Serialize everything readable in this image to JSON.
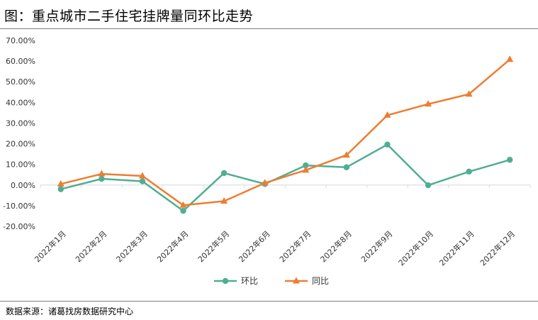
{
  "title": "图：重点城市二手住宅挂牌量同环比走势",
  "source": "数据来源：诸葛找房数据研究中心",
  "chart_data": {
    "type": "line",
    "categories": [
      "2022年1月",
      "2022年2月",
      "2022年3月",
      "2022年4月",
      "2022年5月",
      "2022年6月",
      "2022年7月",
      "2022年8月",
      "2022年9月",
      "2022年10月",
      "2022年11月",
      "2022年12月"
    ],
    "series": [
      {
        "name": "环比",
        "color": "#4fae93",
        "marker": "circle",
        "values": [
          -2.0,
          3.0,
          1.8,
          -12.5,
          5.8,
          0.5,
          9.5,
          8.6,
          19.6,
          -0.1,
          6.5,
          12.2
        ]
      },
      {
        "name": "同比",
        "color": "#ed7d31",
        "marker": "triangle",
        "values": [
          0.5,
          5.4,
          4.4,
          -9.8,
          -7.8,
          1.0,
          7.2,
          14.5,
          33.8,
          39.2,
          44.0,
          60.8
        ]
      }
    ],
    "yticks": [
      "70.00%",
      "60.00%",
      "50.00%",
      "40.00%",
      "30.00%",
      "20.00%",
      "10.00%",
      "0.00%",
      "-10.00%",
      "-20.00%"
    ],
    "ylim": [
      -20,
      70
    ],
    "grid": false,
    "legend_position": "bottom"
  }
}
